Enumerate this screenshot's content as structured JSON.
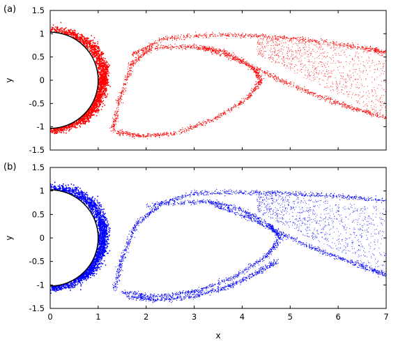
{
  "chart_data": [
    {
      "type": "scatter",
      "panel_label": "(a)",
      "xlabel": "",
      "ylabel": "y",
      "xlim": [
        0,
        7
      ],
      "ylim": [
        -1.5,
        1.5
      ],
      "xticks": [
        0,
        1,
        2,
        3,
        4,
        5,
        6,
        7
      ],
      "x_tick_labels_shown": false,
      "yticks": [
        "1.5",
        "1",
        "0.5",
        "0",
        "-0.5",
        "-1",
        "-1.5"
      ],
      "grid": false,
      "color": "#ff0000",
      "obstacle": {
        "shape": "circle",
        "center": [
          0,
          0
        ],
        "radius": 1.0,
        "color": "#000000"
      },
      "series": [
        {
          "region": "dense band around the cylinder",
          "center_line": [
            [
              0.0,
              1.05
            ],
            [
              0.5,
              0.97
            ],
            [
              0.9,
              0.7
            ],
            [
              1.1,
              0.3
            ],
            [
              1.1,
              0.0
            ],
            [
              1.05,
              -0.3
            ],
            [
              0.9,
              -0.6
            ],
            [
              0.7,
              -0.8
            ],
            [
              0.4,
              -0.95
            ],
            [
              0.0,
              -1.05
            ]
          ]
        },
        {
          "region": "recirculation loop",
          "center_line": [
            [
              1.3,
              -1.1
            ],
            [
              1.45,
              -0.4
            ],
            [
              1.7,
              0.35
            ],
            [
              2.1,
              0.7
            ],
            [
              3.0,
              0.72
            ],
            [
              3.6,
              0.62
            ],
            [
              4.2,
              0.3
            ],
            [
              4.4,
              0.0
            ],
            [
              4.1,
              -0.4
            ],
            [
              3.4,
              -0.85
            ],
            [
              2.6,
              -1.15
            ],
            [
              1.9,
              -1.2
            ],
            [
              1.4,
              -1.12
            ]
          ]
        },
        {
          "region": "wake upper branch",
          "center_line": [
            [
              1.7,
              0.55
            ],
            [
              2.4,
              0.9
            ],
            [
              3.5,
              0.98
            ],
            [
              4.5,
              0.95
            ],
            [
              5.5,
              0.85
            ],
            [
              6.5,
              0.7
            ],
            [
              7.0,
              0.6
            ]
          ]
        },
        {
          "region": "wake lower branch",
          "center_line": [
            [
              3.2,
              0.7
            ],
            [
              4.0,
              0.4
            ],
            [
              4.8,
              0.0
            ],
            [
              5.6,
              -0.35
            ],
            [
              6.3,
              -0.6
            ],
            [
              7.0,
              -0.8
            ]
          ]
        }
      ]
    },
    {
      "type": "scatter",
      "panel_label": "(b)",
      "xlabel": "x",
      "ylabel": "y",
      "xlim": [
        0,
        7
      ],
      "ylim": [
        -1.5,
        1.5
      ],
      "xticks": [
        "0",
        "1",
        "2",
        "3",
        "4",
        "5",
        "6",
        "7"
      ],
      "x_tick_labels_shown": true,
      "yticks": [
        "1.5",
        "1",
        "0.5",
        "0",
        "-0.5",
        "-1",
        "-1.5"
      ],
      "grid": false,
      "color": "#0000ff",
      "obstacle": {
        "shape": "circle",
        "center": [
          0,
          0
        ],
        "radius": 1.0,
        "color": "#000000"
      },
      "series": [
        {
          "region": "dense band around the cylinder",
          "center_line": [
            [
              0.0,
              1.05
            ],
            [
              0.5,
              0.97
            ],
            [
              0.9,
              0.7
            ],
            [
              1.1,
              0.3
            ],
            [
              1.1,
              0.0
            ],
            [
              1.05,
              -0.3
            ],
            [
              0.9,
              -0.6
            ],
            [
              0.7,
              -0.8
            ],
            [
              0.4,
              -0.95
            ],
            [
              0.0,
              -1.05
            ]
          ]
        },
        {
          "region": "recirculation loop",
          "center_line": [
            [
              1.35,
              -1.1
            ],
            [
              1.5,
              -0.4
            ],
            [
              1.8,
              0.3
            ],
            [
              2.3,
              0.72
            ],
            [
              3.3,
              0.78
            ],
            [
              4.0,
              0.6
            ],
            [
              4.6,
              0.25
            ],
            [
              4.8,
              0.0
            ],
            [
              4.5,
              -0.4
            ],
            [
              3.8,
              -0.85
            ],
            [
              3.0,
              -1.15
            ],
            [
              2.2,
              -1.25
            ],
            [
              1.5,
              -1.15
            ]
          ]
        },
        {
          "region": "inner trailing filament",
          "center_line": [
            [
              4.75,
              -0.48
            ],
            [
              4.3,
              -0.75
            ],
            [
              3.7,
              -1.05
            ],
            [
              3.0,
              -1.25
            ],
            [
              2.2,
              -1.32
            ],
            [
              1.6,
              -1.25
            ]
          ]
        },
        {
          "region": "wake upper branch",
          "center_line": [
            [
              2.0,
              0.65
            ],
            [
              3.0,
              0.95
            ],
            [
              4.0,
              0.97
            ],
            [
              5.0,
              0.95
            ],
            [
              6.0,
              0.88
            ],
            [
              7.0,
              0.8
            ]
          ]
        },
        {
          "region": "wake lower branch",
          "center_line": [
            [
              3.3,
              0.75
            ],
            [
              4.2,
              0.4
            ],
            [
              5.0,
              0.0
            ],
            [
              5.8,
              -0.35
            ],
            [
              6.5,
              -0.6
            ],
            [
              7.0,
              -0.8
            ]
          ]
        }
      ]
    }
  ]
}
